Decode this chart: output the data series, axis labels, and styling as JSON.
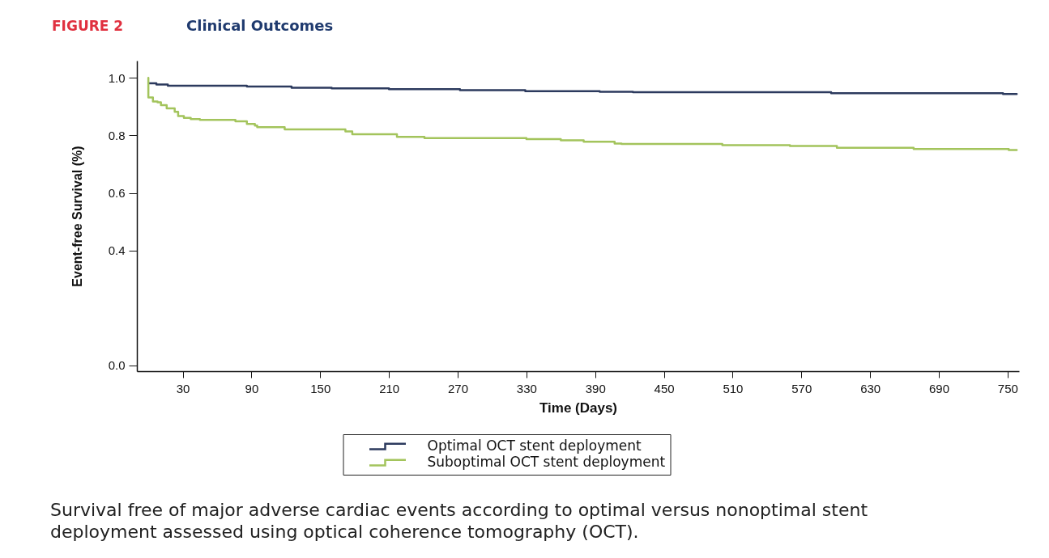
{
  "chart_data": {
    "type": "step",
    "title": "Clinical Outcomes",
    "annotations": [
      "FIGURE 2",
      "Survival free of major adverse cardiac events according to optimal versus nonoptimal stent deployment assessed using optical coherence tomography (OCT)."
    ],
    "xlabel": "Time (Days)",
    "ylabel": "Event-free Survival (%)",
    "xlim": [
      -10,
      760
    ],
    "xticks": [
      30,
      90,
      150,
      210,
      270,
      330,
      390,
      450,
      510,
      570,
      630,
      690,
      750
    ],
    "ylim": [
      -0.02,
      1.06
    ],
    "yticks": [
      {
        "value": 0,
        "label": "0.0"
      },
      0.4,
      0.6,
      0.8,
      {
        "value": 1,
        "label": "1.0"
      }
    ],
    "grid": false,
    "legend": "bottom",
    "series": [
      {
        "name": "Optimal OCT stent deployment",
        "color": "#2c3a5e",
        "x": [
          0,
          7,
          17,
          86,
          125,
          160,
          210,
          272,
          329,
          394,
          423,
          596,
          746,
          758
        ],
        "values": [
          0.981,
          0.977,
          0.973,
          0.97,
          0.966,
          0.964,
          0.961,
          0.957,
          0.954,
          0.952,
          0.95,
          0.947,
          0.944,
          0.944
        ]
      },
      {
        "name": "Suboptimal OCT stent deployment",
        "color": "#a3c45c",
        "x": [
          0,
          0,
          4,
          8,
          11,
          16,
          23,
          26,
          31,
          37,
          45,
          76,
          86,
          93,
          95,
          119,
          172,
          178,
          217,
          241,
          330,
          360,
          380,
          407,
          413,
          501,
          560,
          601,
          668,
          751,
          758
        ],
        "values": [
          1.0,
          0.932,
          0.918,
          0.915,
          0.905,
          0.894,
          0.882,
          0.867,
          0.861,
          0.857,
          0.854,
          0.849,
          0.84,
          0.834,
          0.829,
          0.821,
          0.814,
          0.804,
          0.795,
          0.791,
          0.787,
          0.783,
          0.778,
          0.772,
          0.77,
          0.766,
          0.763,
          0.757,
          0.753,
          0.749,
          0.749
        ]
      }
    ]
  }
}
